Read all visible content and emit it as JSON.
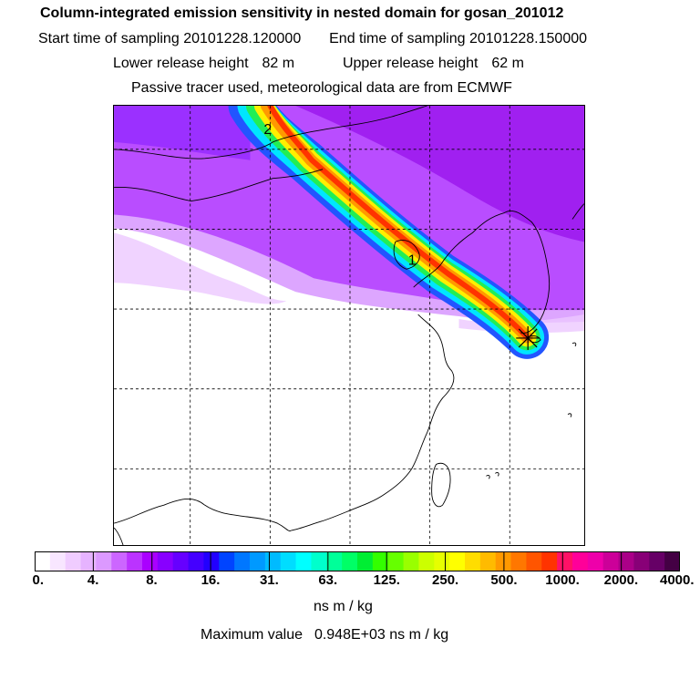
{
  "header": {
    "title": "Column-integrated emission sensitivity in nested domain for gosan_201012",
    "start_label": "Start time of sampling",
    "start_value": "20101228.120000",
    "end_label": "End time of sampling",
    "end_value": "20101228.150000",
    "lower_label": "Lower release height",
    "lower_value": "82 m",
    "upper_label": "Upper release height",
    "upper_value": "62 m",
    "subtitle": "Passive tracer used, meteorological data are from ECMWF"
  },
  "map": {
    "markers": [
      "2",
      "1"
    ],
    "release_site": "gosan"
  },
  "colorbar": {
    "tick_labels": [
      "0.",
      "4.",
      "8.",
      "16.",
      "31.",
      "63.",
      "125.",
      "250.",
      "500.",
      "1000.",
      "2000.",
      "4000."
    ],
    "colors": [
      "#ffffff",
      "#f8e6ff",
      "#f0ccff",
      "#e6b3ff",
      "#dc99ff",
      "#cc66ff",
      "#bb33ff",
      "#aa00ff",
      "#8800ff",
      "#6600ff",
      "#4400ff",
      "#2200ff",
      "#0044ff",
      "#0077ff",
      "#0099ff",
      "#00bbff",
      "#00ddff",
      "#00ffff",
      "#00ffcc",
      "#00ff99",
      "#00ff66",
      "#00ee33",
      "#33ff00",
      "#66ff00",
      "#99ff00",
      "#ccff00",
      "#e6ff00",
      "#ffff00",
      "#ffdd00",
      "#ffbb00",
      "#ff9900",
      "#ff7700",
      "#ff5500",
      "#ff3300",
      "#ff1166",
      "#ff0099",
      "#ee00aa",
      "#cc0099",
      "#aa0088",
      "#880077",
      "#660066",
      "#440044"
    ],
    "units": "ns m / kg"
  },
  "footer": {
    "max_label": "Maximum value",
    "max_value": "0.948E+03",
    "max_units": "ns m / kg"
  }
}
